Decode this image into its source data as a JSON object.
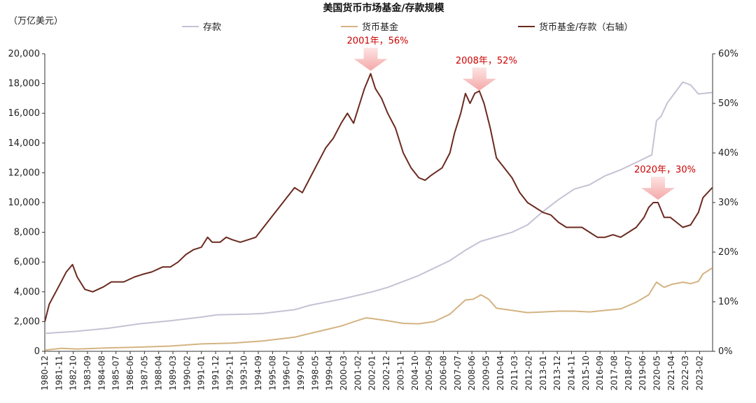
{
  "chart_data": {
    "type": "line",
    "title": "美国货币市场基金/存款规模",
    "y_left_unit": "（万亿美元）",
    "y_left_range": [
      0,
      20000
    ],
    "y_left_ticks": [
      "0",
      "2,000",
      "4,000",
      "6,000",
      "8,000",
      "10,000",
      "12,000",
      "14,000",
      "16,000",
      "18,000",
      "20,000"
    ],
    "y_right_range": [
      0,
      60
    ],
    "y_right_ticks": [
      "0%",
      "10%",
      "20%",
      "30%",
      "40%",
      "50%",
      "60%"
    ],
    "x_ticks": [
      "1980-12",
      "1981-11",
      "1982-10",
      "1983-09",
      "1984-08",
      "1985-07",
      "1986-06",
      "1987-05",
      "1988-04",
      "1989-03",
      "1990-02",
      "1991-01",
      "1991-12",
      "1992-11",
      "1993-10",
      "1994-09",
      "1995-08",
      "1996-07",
      "1997-06",
      "1998-05",
      "1999-04",
      "2000-03",
      "2001-02",
      "2002-01",
      "2002-12",
      "2003-11",
      "2004-10",
      "2005-09",
      "2006-08",
      "2007-07",
      "2008-06",
      "2009-05",
      "2010-04",
      "2011-03",
      "2012-02",
      "2013-01",
      "2013-12",
      "2014-11",
      "2015-10",
      "2016-09",
      "2017-08",
      "2018-07",
      "2019-06",
      "2020-05",
      "2021-04",
      "2022-03",
      "2023-02"
    ],
    "x_range": [
      1980.917,
      2023.917
    ],
    "legend": [
      "存款",
      "货币基金",
      "货币基金/存款（右轴）"
    ],
    "colors": {
      "deposits": "#c4c2d4",
      "mmf": "#d4b382",
      "ratio": "#6b2a20",
      "annotation": "#cc0000",
      "arrow": "#f4a8a8"
    },
    "annotations": [
      {
        "label": "2001年，56%",
        "x": 2001.9,
        "y": 56
      },
      {
        "label": "2008年，52%",
        "x": 2008.9,
        "y": 52
      },
      {
        "label": "2020年，30%",
        "x": 2020.4,
        "y": 30
      }
    ],
    "series": [
      {
        "name": "存款",
        "axis": "left",
        "points": [
          [
            1980.92,
            1200
          ],
          [
            1983,
            1350
          ],
          [
            1985,
            1550
          ],
          [
            1987,
            1850
          ],
          [
            1989,
            2050
          ],
          [
            1991,
            2300
          ],
          [
            1992,
            2450
          ],
          [
            1994,
            2500
          ],
          [
            1995,
            2550
          ],
          [
            1997,
            2800
          ],
          [
            1998,
            3100
          ],
          [
            1999,
            3300
          ],
          [
            2000,
            3500
          ],
          [
            2001,
            3750
          ],
          [
            2002,
            4000
          ],
          [
            2003,
            4300
          ],
          [
            2004,
            4700
          ],
          [
            2005,
            5100
          ],
          [
            2006,
            5600
          ],
          [
            2007,
            6100
          ],
          [
            2008,
            6800
          ],
          [
            2009,
            7400
          ],
          [
            2010,
            7700
          ],
          [
            2011,
            8000
          ],
          [
            2012,
            8500
          ],
          [
            2013,
            9400
          ],
          [
            2014,
            10200
          ],
          [
            2015,
            10900
          ],
          [
            2016,
            11200
          ],
          [
            2017,
            11800
          ],
          [
            2018,
            12200
          ],
          [
            2019,
            12700
          ],
          [
            2020,
            13200
          ],
          [
            2020.3,
            15500
          ],
          [
            2020.6,
            15800
          ],
          [
            2021,
            16700
          ],
          [
            2021.5,
            17400
          ],
          [
            2022,
            18100
          ],
          [
            2022.5,
            17900
          ],
          [
            2023,
            17300
          ],
          [
            2023.9,
            17400
          ]
        ]
      },
      {
        "name": "货币基金",
        "axis": "left",
        "points": [
          [
            1980.92,
            80
          ],
          [
            1982,
            200
          ],
          [
            1983,
            150
          ],
          [
            1985,
            230
          ],
          [
            1987,
            280
          ],
          [
            1989,
            350
          ],
          [
            1991,
            500
          ],
          [
            1993,
            550
          ],
          [
            1995,
            700
          ],
          [
            1997,
            950
          ],
          [
            1998,
            1200
          ],
          [
            1999,
            1450
          ],
          [
            2000,
            1700
          ],
          [
            2001,
            2050
          ],
          [
            2001.6,
            2250
          ],
          [
            2002,
            2200
          ],
          [
            2003,
            2050
          ],
          [
            2004,
            1880
          ],
          [
            2005,
            1850
          ],
          [
            2006,
            2000
          ],
          [
            2007,
            2500
          ],
          [
            2008,
            3450
          ],
          [
            2008.5,
            3500
          ],
          [
            2009,
            3800
          ],
          [
            2009.5,
            3500
          ],
          [
            2010,
            2900
          ],
          [
            2011,
            2750
          ],
          [
            2012,
            2600
          ],
          [
            2013,
            2650
          ],
          [
            2014,
            2700
          ],
          [
            2015,
            2700
          ],
          [
            2016,
            2650
          ],
          [
            2017,
            2750
          ],
          [
            2018,
            2850
          ],
          [
            2019,
            3300
          ],
          [
            2019.8,
            3800
          ],
          [
            2020.3,
            4650
          ],
          [
            2020.8,
            4300
          ],
          [
            2021.3,
            4500
          ],
          [
            2022,
            4650
          ],
          [
            2022.5,
            4550
          ],
          [
            2023,
            4700
          ],
          [
            2023.3,
            5200
          ],
          [
            2023.9,
            5600
          ]
        ]
      },
      {
        "name": "货币基金/存款（右轴）",
        "axis": "right",
        "points": [
          [
            1980.92,
            6
          ],
          [
            1981.2,
            9.5
          ],
          [
            1981.8,
            13
          ],
          [
            1982.3,
            16
          ],
          [
            1982.7,
            17.5
          ],
          [
            1983,
            15
          ],
          [
            1983.5,
            12.5
          ],
          [
            1984,
            12
          ],
          [
            1984.7,
            13
          ],
          [
            1985.2,
            14
          ],
          [
            1986,
            14
          ],
          [
            1986.7,
            15
          ],
          [
            1987.2,
            15.5
          ],
          [
            1987.8,
            16
          ],
          [
            1988.5,
            17
          ],
          [
            1989,
            17
          ],
          [
            1989.5,
            18
          ],
          [
            1990,
            19.5
          ],
          [
            1990.5,
            20.5
          ],
          [
            1991,
            21
          ],
          [
            1991.4,
            23
          ],
          [
            1991.7,
            22
          ],
          [
            1992.2,
            22
          ],
          [
            1992.6,
            23
          ],
          [
            1993,
            22.5
          ],
          [
            1993.5,
            22
          ],
          [
            1994,
            22.5
          ],
          [
            1994.5,
            23
          ],
          [
            1995,
            25
          ],
          [
            1995.5,
            27
          ],
          [
            1996,
            29
          ],
          [
            1996.5,
            31
          ],
          [
            1997,
            33
          ],
          [
            1997.5,
            32
          ],
          [
            1998,
            35
          ],
          [
            1998.5,
            38
          ],
          [
            1999,
            41
          ],
          [
            1999.5,
            43
          ],
          [
            2000,
            46
          ],
          [
            2000.4,
            48
          ],
          [
            2000.8,
            46
          ],
          [
            2001.2,
            50
          ],
          [
            2001.5,
            53
          ],
          [
            2001.9,
            56
          ],
          [
            2002.2,
            53
          ],
          [
            2002.6,
            51
          ],
          [
            2003,
            48
          ],
          [
            2003.5,
            45
          ],
          [
            2004,
            40
          ],
          [
            2004.5,
            37
          ],
          [
            2005,
            35
          ],
          [
            2005.4,
            34.5
          ],
          [
            2005.8,
            35.5
          ],
          [
            2006.5,
            37
          ],
          [
            2007,
            40
          ],
          [
            2007.3,
            44
          ],
          [
            2007.7,
            48
          ],
          [
            2008,
            52
          ],
          [
            2008.3,
            50
          ],
          [
            2008.6,
            52
          ],
          [
            2008.9,
            52.5
          ],
          [
            2009.2,
            50
          ],
          [
            2009.6,
            45
          ],
          [
            2010,
            39
          ],
          [
            2010.5,
            37
          ],
          [
            2011,
            35
          ],
          [
            2011.5,
            32
          ],
          [
            2012,
            30
          ],
          [
            2012.5,
            29
          ],
          [
            2013,
            28
          ],
          [
            2013.5,
            27.5
          ],
          [
            2014,
            26
          ],
          [
            2014.5,
            25
          ],
          [
            2015,
            25
          ],
          [
            2015.5,
            25
          ],
          [
            2016,
            24
          ],
          [
            2016.5,
            23
          ],
          [
            2017,
            23
          ],
          [
            2017.5,
            23.5
          ],
          [
            2018,
            23
          ],
          [
            2018.5,
            24
          ],
          [
            2019,
            25
          ],
          [
            2019.5,
            27
          ],
          [
            2019.8,
            29
          ],
          [
            2020.1,
            30
          ],
          [
            2020.4,
            30
          ],
          [
            2020.8,
            27
          ],
          [
            2021.2,
            27
          ],
          [
            2021.6,
            26
          ],
          [
            2022,
            25
          ],
          [
            2022.5,
            25.5
          ],
          [
            2023,
            28
          ],
          [
            2023.3,
            31
          ],
          [
            2023.9,
            33
          ]
        ]
      }
    ]
  }
}
